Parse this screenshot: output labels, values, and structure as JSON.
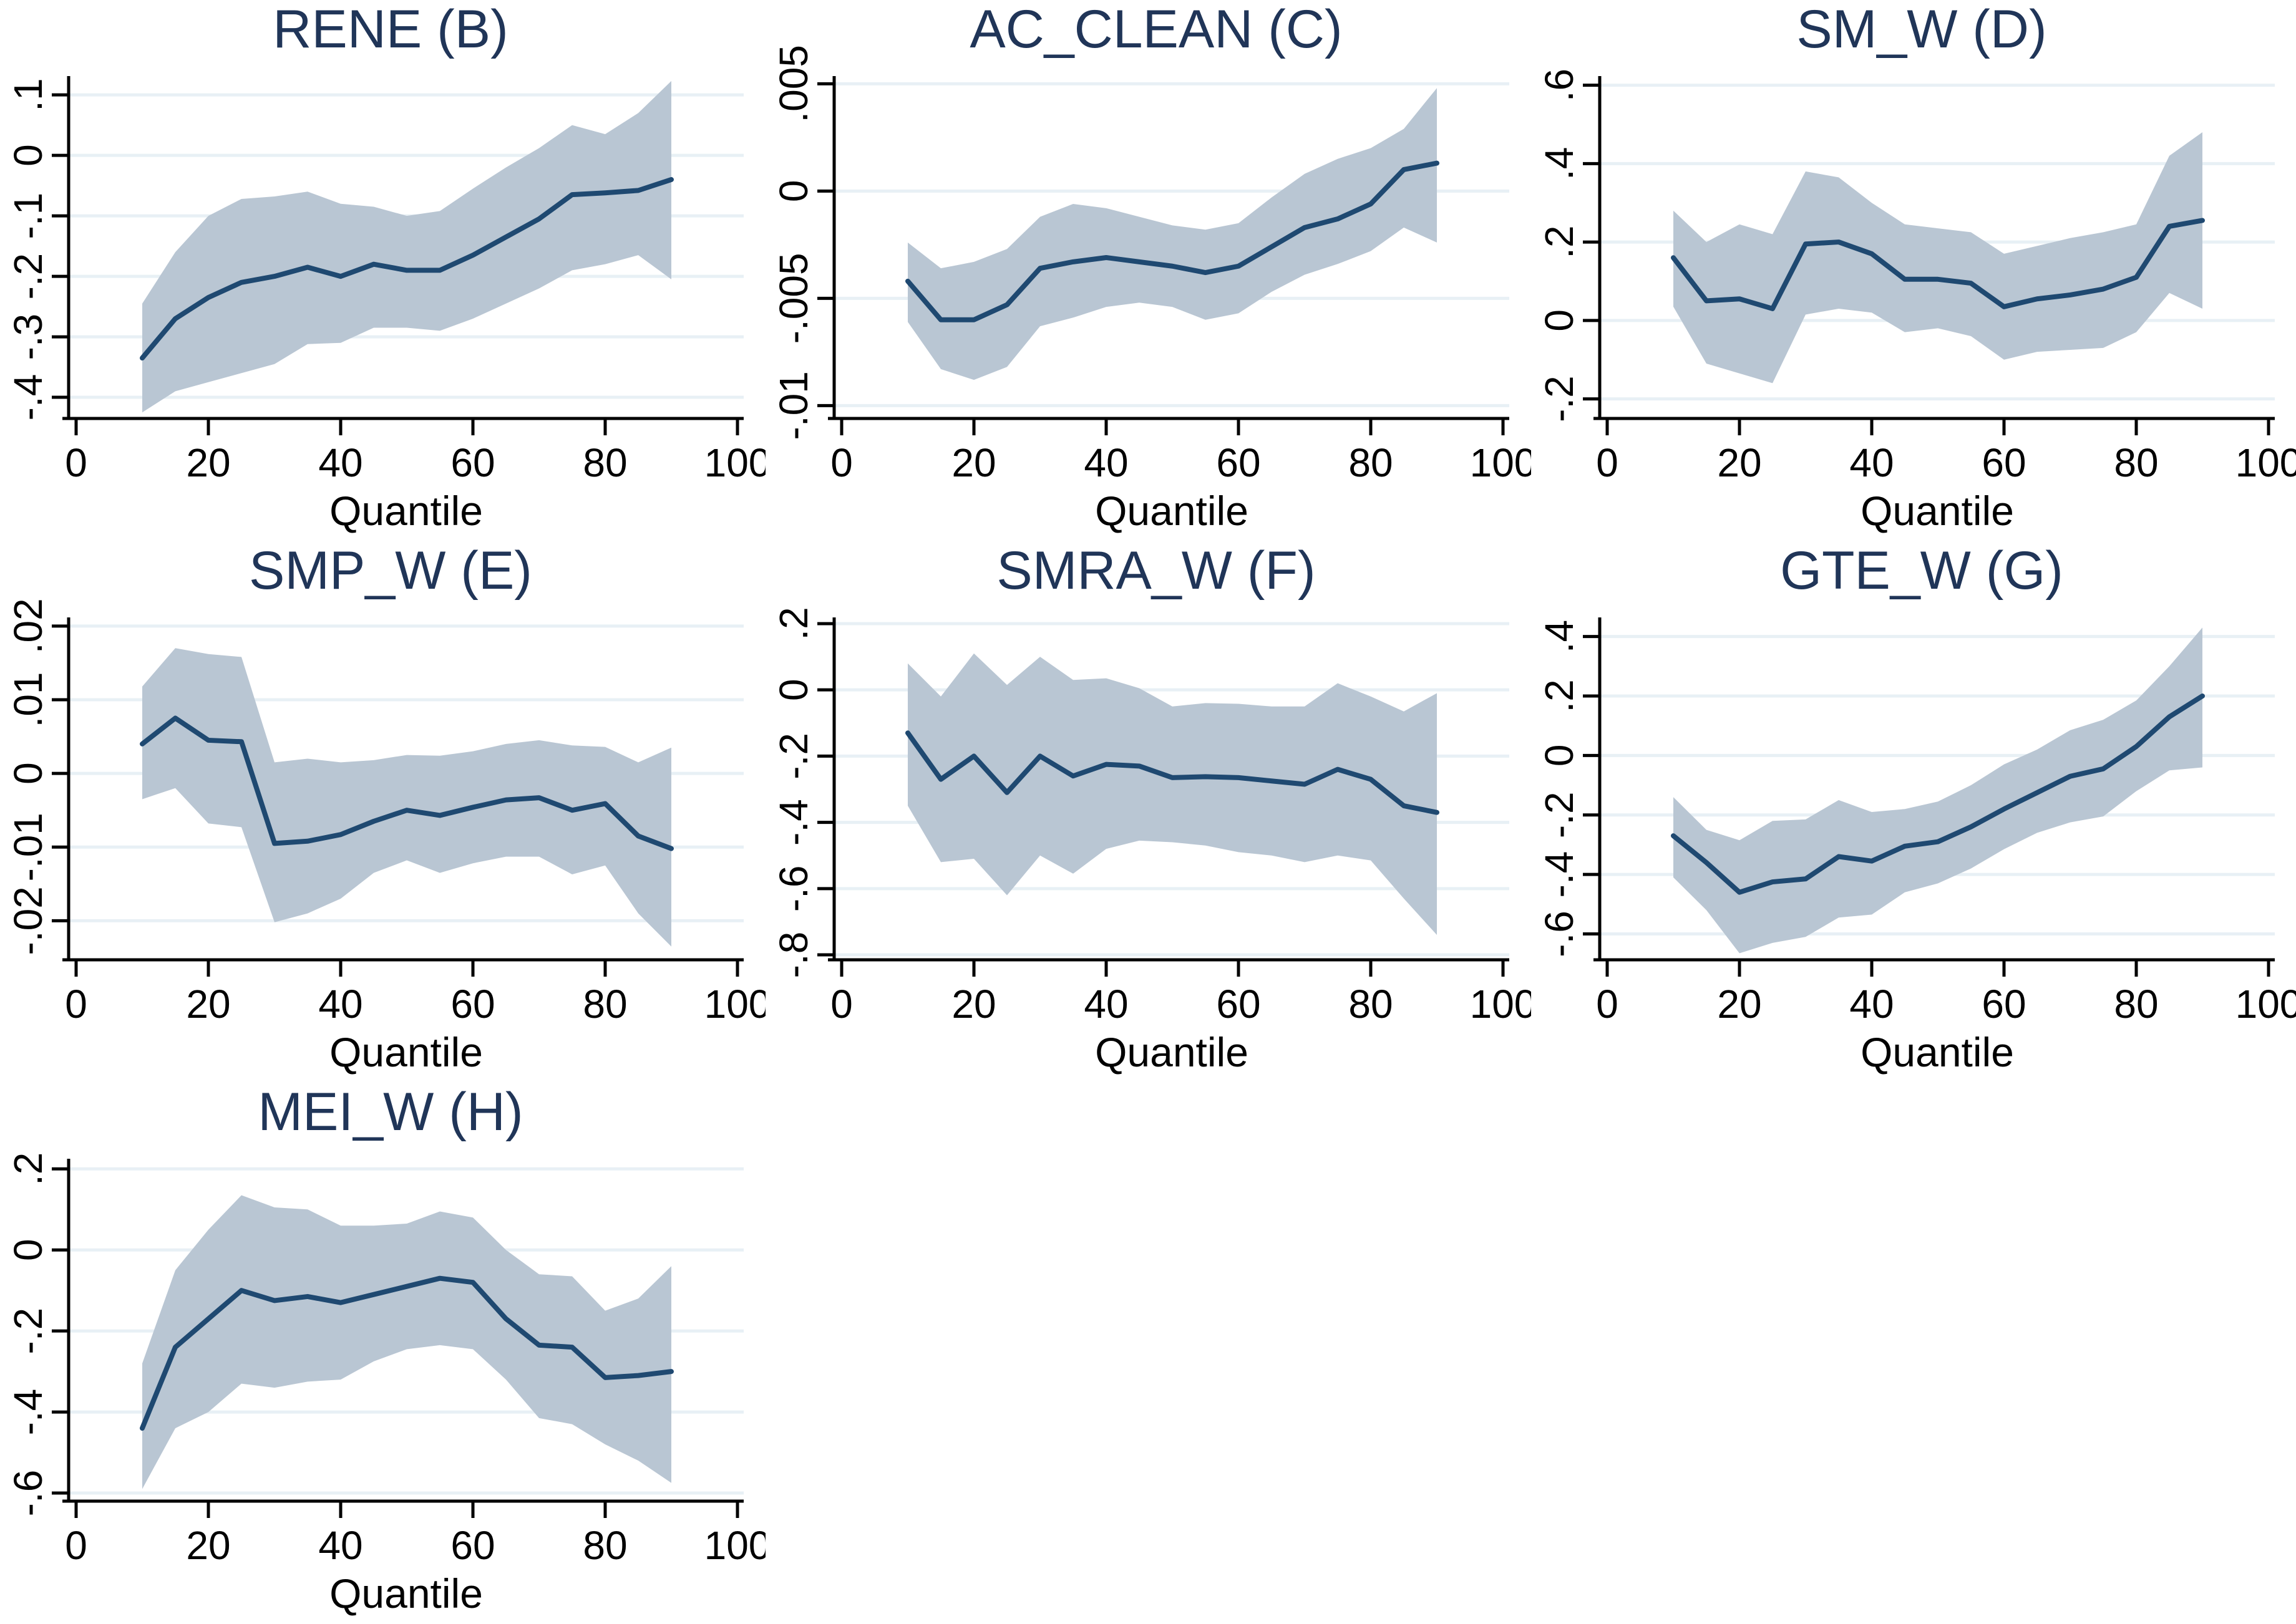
{
  "figure": {
    "background": "#ffffff",
    "colors": {
      "line": "#1f4971",
      "band": "#b9c6d3",
      "grid": "#e8f0f5",
      "axis": "#000000",
      "title": "#203558",
      "tick_label": "#000000"
    },
    "panel_count": 7,
    "x_axis_label": "Quantile"
  },
  "chart_data": [
    {
      "id": "rene-b",
      "type": "line",
      "subtype": "line-with-confidence-band",
      "title": "RENE (B)",
      "xlabel": "Quantile",
      "legend": "none",
      "grid": "horizontal",
      "xlim": [
        0,
        100
      ],
      "xticks": [
        0,
        20,
        40,
        60,
        80,
        100
      ],
      "xtick_labels": [
        "0",
        "20",
        "40",
        "60",
        "80",
        "100"
      ],
      "ylim": [
        -0.435,
        0.129
      ],
      "yticks": [
        0.1,
        0,
        -0.1,
        -0.2,
        -0.3,
        -0.4
      ],
      "ytick_labels": [
        ".1",
        "0",
        "-.1",
        "-.2",
        "-.3",
        "-.4"
      ],
      "x": [
        10,
        15,
        20,
        25,
        30,
        35,
        40,
        45,
        50,
        55,
        60,
        65,
        70,
        75,
        80,
        85,
        90
      ],
      "series": [
        {
          "name": "coefficient",
          "values": [
            -0.335,
            -0.27,
            -0.235,
            -0.21,
            -0.2,
            -0.185,
            -0.2,
            -0.18,
            -0.19,
            -0.19,
            -0.165,
            -0.135,
            -0.105,
            -0.065,
            -0.062,
            -0.058,
            -0.04
          ]
        },
        {
          "name": "ci_upper",
          "values": [
            -0.245,
            -0.16,
            -0.1,
            -0.072,
            -0.068,
            -0.06,
            -0.08,
            -0.085,
            -0.1,
            -0.092,
            -0.055,
            -0.02,
            0.012,
            0.05,
            0.035,
            0.07,
            0.123
          ]
        },
        {
          "name": "ci_lower",
          "values": [
            -0.425,
            -0.39,
            -0.375,
            -0.36,
            -0.345,
            -0.312,
            -0.31,
            -0.285,
            -0.285,
            -0.29,
            -0.27,
            -0.245,
            -0.22,
            -0.19,
            -0.18,
            -0.165,
            -0.205
          ]
        }
      ]
    },
    {
      "id": "ac-clean-c",
      "type": "line",
      "subtype": "line-with-confidence-band",
      "title": "AC_CLEAN (C)",
      "xlabel": "Quantile",
      "legend": "none",
      "grid": "horizontal",
      "xlim": [
        0,
        100
      ],
      "xticks": [
        0,
        20,
        40,
        60,
        80,
        100
      ],
      "xtick_labels": [
        "0",
        "20",
        "40",
        "60",
        "80",
        "100"
      ],
      "ylim": [
        -0.0106,
        0.0053
      ],
      "yticks": [
        0.005,
        0,
        -0.005,
        -0.01
      ],
      "ytick_labels": [
        ".005",
        "0",
        "-.005",
        "-.01"
      ],
      "x": [
        10,
        15,
        20,
        25,
        30,
        35,
        40,
        45,
        50,
        55,
        60,
        65,
        70,
        75,
        80,
        85,
        90
      ],
      "series": [
        {
          "name": "coefficient",
          "values": [
            -0.0042,
            -0.006,
            -0.006,
            -0.0053,
            -0.0036,
            -0.0033,
            -0.0031,
            -0.0033,
            -0.0035,
            -0.0038,
            -0.0035,
            -0.0026,
            -0.0017,
            -0.0013,
            -0.0006,
            0.001,
            0.0013
          ]
        },
        {
          "name": "ci_upper",
          "values": [
            -0.0024,
            -0.0036,
            -0.0033,
            -0.0027,
            -0.0012,
            -0.0006,
            -0.0008,
            -0.0012,
            -0.0016,
            -0.0018,
            -0.0015,
            -0.0003,
            0.0008,
            0.0015,
            0.002,
            0.0029,
            0.0048
          ]
        },
        {
          "name": "ci_lower",
          "values": [
            -0.0061,
            -0.0083,
            -0.0088,
            -0.0082,
            -0.0063,
            -0.0059,
            -0.0054,
            -0.0052,
            -0.0054,
            -0.006,
            -0.0057,
            -0.0047,
            -0.0039,
            -0.0034,
            -0.0028,
            -0.0017,
            -0.0024
          ]
        }
      ]
    },
    {
      "id": "sm-w-d",
      "type": "line",
      "subtype": "line-with-confidence-band",
      "title": "SM_W (D)",
      "xlabel": "Quantile",
      "legend": "none",
      "grid": "horizontal",
      "xlim": [
        0,
        100
      ],
      "xticks": [
        0,
        20,
        40,
        60,
        80,
        100
      ],
      "xtick_labels": [
        "0",
        "20",
        "40",
        "60",
        "80",
        "100"
      ],
      "ylim": [
        -0.25,
        0.62
      ],
      "yticks": [
        0.6,
        0.4,
        0.2,
        0,
        -0.2
      ],
      "ytick_labels": [
        ".6",
        ".4",
        ".2",
        "0",
        "-.2"
      ],
      "x": [
        10,
        15,
        20,
        25,
        30,
        35,
        40,
        45,
        50,
        55,
        60,
        65,
        70,
        75,
        80,
        85,
        90
      ],
      "series": [
        {
          "name": "coefficient",
          "values": [
            0.16,
            0.05,
            0.055,
            0.03,
            0.195,
            0.2,
            0.17,
            0.105,
            0.105,
            0.095,
            0.035,
            0.055,
            0.065,
            0.08,
            0.11,
            0.24,
            0.255
          ]
        },
        {
          "name": "ci_upper",
          "values": [
            0.28,
            0.2,
            0.245,
            0.22,
            0.38,
            0.365,
            0.3,
            0.245,
            0.235,
            0.225,
            0.17,
            0.19,
            0.21,
            0.225,
            0.245,
            0.42,
            0.48
          ]
        },
        {
          "name": "ci_lower",
          "values": [
            0.035,
            -0.11,
            -0.135,
            -0.16,
            0.015,
            0.03,
            0.02,
            -0.03,
            -0.02,
            -0.04,
            -0.1,
            -0.08,
            -0.075,
            -0.07,
            -0.03,
            0.07,
            0.03
          ]
        }
      ]
    },
    {
      "id": "smp-w-e",
      "type": "line",
      "subtype": "line-with-confidence-band",
      "title": "SMP_W (E)",
      "xlabel": "Quantile",
      "legend": "none",
      "grid": "horizontal",
      "xlim": [
        0,
        100
      ],
      "xticks": [
        0,
        20,
        40,
        60,
        80,
        100
      ],
      "xtick_labels": [
        "0",
        "20",
        "40",
        "60",
        "80",
        "100"
      ],
      "ylim": [
        -0.0253,
        0.021
      ],
      "yticks": [
        0.02,
        0.01,
        0,
        -0.01,
        -0.02
      ],
      "ytick_labels": [
        ".02",
        ".01",
        "0",
        "-.01",
        "-.02"
      ],
      "x": [
        10,
        15,
        20,
        25,
        30,
        35,
        40,
        45,
        50,
        55,
        60,
        65,
        70,
        75,
        80,
        85,
        90
      ],
      "series": [
        {
          "name": "coefficient",
          "values": [
            0.004,
            0.0075,
            0.0045,
            0.0043,
            -0.0095,
            -0.0092,
            -0.0083,
            -0.0065,
            -0.005,
            -0.0057,
            -0.0046,
            -0.0036,
            -0.0033,
            -0.005,
            -0.0041,
            -0.0085,
            -0.0102
          ]
        },
        {
          "name": "ci_upper",
          "values": [
            0.0118,
            0.017,
            0.0162,
            0.0158,
            0.0015,
            0.002,
            0.0015,
            0.0018,
            0.0025,
            0.0024,
            0.003,
            0.004,
            0.0045,
            0.0038,
            0.0036,
            0.0015,
            0.0035
          ]
        },
        {
          "name": "ci_lower",
          "values": [
            -0.0035,
            -0.002,
            -0.0068,
            -0.0073,
            -0.0202,
            -0.019,
            -0.017,
            -0.0135,
            -0.0118,
            -0.0135,
            -0.0122,
            -0.0113,
            -0.0113,
            -0.0137,
            -0.0125,
            -0.019,
            -0.0235
          ]
        }
      ]
    },
    {
      "id": "smra-w-f",
      "type": "line",
      "subtype": "line-with-confidence-band",
      "title": "SMRA_W (F)",
      "xlabel": "Quantile",
      "legend": "none",
      "grid": "horizontal",
      "xlim": [
        0,
        100
      ],
      "xticks": [
        0,
        20,
        40,
        60,
        80,
        100
      ],
      "xtick_labels": [
        "0",
        "20",
        "40",
        "60",
        "80",
        "100"
      ],
      "ylim": [
        -0.815,
        0.215
      ],
      "yticks": [
        0.2,
        0,
        -0.2,
        -0.4,
        -0.6,
        -0.8
      ],
      "ytick_labels": [
        ".2",
        "0",
        "-.2",
        "-.4",
        "-.6",
        "-.8"
      ],
      "x": [
        10,
        15,
        20,
        25,
        30,
        35,
        40,
        45,
        50,
        55,
        60,
        65,
        70,
        75,
        80,
        85,
        90
      ],
      "series": [
        {
          "name": "coefficient",
          "values": [
            -0.13,
            -0.27,
            -0.2,
            -0.31,
            -0.2,
            -0.26,
            -0.225,
            -0.23,
            -0.265,
            -0.262,
            -0.265,
            -0.275,
            -0.285,
            -0.24,
            -0.27,
            -0.35,
            -0.37
          ]
        },
        {
          "name": "ci_upper",
          "values": [
            0.08,
            -0.02,
            0.11,
            0.015,
            0.1,
            0.03,
            0.035,
            0.005,
            -0.05,
            -0.04,
            -0.042,
            -0.05,
            -0.05,
            0.02,
            -0.02,
            -0.065,
            -0.01
          ]
        },
        {
          "name": "ci_lower",
          "values": [
            -0.35,
            -0.52,
            -0.51,
            -0.62,
            -0.5,
            -0.555,
            -0.48,
            -0.455,
            -0.46,
            -0.47,
            -0.49,
            -0.5,
            -0.52,
            -0.5,
            -0.515,
            -0.63,
            -0.74
          ]
        }
      ]
    },
    {
      "id": "gte-w-g",
      "type": "line",
      "subtype": "line-with-confidence-band",
      "title": "GTE_W (G)",
      "xlabel": "Quantile",
      "legend": "none",
      "grid": "horizontal",
      "xlim": [
        0,
        100
      ],
      "xticks": [
        0,
        20,
        40,
        60,
        80,
        100
      ],
      "xtick_labels": [
        "0",
        "20",
        "40",
        "60",
        "80",
        "100"
      ],
      "ylim": [
        -0.687,
        0.46
      ],
      "yticks": [
        0.4,
        0.2,
        0,
        -0.2,
        -0.4,
        -0.6
      ],
      "ytick_labels": [
        ".4",
        ".2",
        "0",
        "-.2",
        "-.4",
        "-.6"
      ],
      "x": [
        10,
        15,
        20,
        25,
        30,
        35,
        40,
        45,
        50,
        55,
        60,
        65,
        70,
        75,
        80,
        85,
        90
      ],
      "series": [
        {
          "name": "coefficient",
          "values": [
            -0.27,
            -0.36,
            -0.46,
            -0.425,
            -0.415,
            -0.34,
            -0.355,
            -0.305,
            -0.29,
            -0.24,
            -0.18,
            -0.125,
            -0.07,
            -0.045,
            0.03,
            0.13,
            0.2
          ]
        },
        {
          "name": "ci_upper",
          "values": [
            -0.14,
            -0.25,
            -0.285,
            -0.22,
            -0.215,
            -0.15,
            -0.19,
            -0.18,
            -0.155,
            -0.1,
            -0.03,
            0.02,
            0.085,
            0.12,
            0.185,
            0.3,
            0.43
          ]
        },
        {
          "name": "ci_lower",
          "values": [
            -0.41,
            -0.52,
            -0.665,
            -0.63,
            -0.61,
            -0.545,
            -0.535,
            -0.46,
            -0.43,
            -0.38,
            -0.315,
            -0.26,
            -0.225,
            -0.205,
            -0.12,
            -0.05,
            -0.04
          ]
        }
      ]
    },
    {
      "id": "mei-w-h",
      "type": "line",
      "subtype": "line-with-confidence-band",
      "title": "MEI_W (H)",
      "xlabel": "Quantile",
      "legend": "none",
      "grid": "horizontal",
      "xlim": [
        0,
        100
      ],
      "xticks": [
        0,
        20,
        40,
        60,
        80,
        100
      ],
      "xtick_labels": [
        "0",
        "20",
        "40",
        "60",
        "80",
        "100"
      ],
      "ylim": [
        -0.62,
        0.222
      ],
      "yticks": [
        0.2,
        0,
        -0.2,
        -0.4,
        -0.6
      ],
      "ytick_labels": [
        ".2",
        "0",
        "-.2",
        "-.4",
        "-.6"
      ],
      "x": [
        10,
        15,
        20,
        25,
        30,
        35,
        40,
        45,
        50,
        55,
        60,
        65,
        70,
        75,
        80,
        85,
        90
      ],
      "series": [
        {
          "name": "coefficient",
          "values": [
            -0.44,
            -0.24,
            -0.17,
            -0.1,
            -0.125,
            -0.115,
            -0.13,
            -0.11,
            -0.09,
            -0.07,
            -0.08,
            -0.17,
            -0.235,
            -0.24,
            -0.315,
            -0.31,
            -0.3
          ]
        },
        {
          "name": "ci_upper",
          "values": [
            -0.28,
            -0.05,
            0.05,
            0.135,
            0.105,
            0.1,
            0.06,
            0.06,
            0.065,
            0.095,
            0.08,
            0.0,
            -0.06,
            -0.065,
            -0.15,
            -0.12,
            -0.04
          ]
        },
        {
          "name": "ci_lower",
          "values": [
            -0.59,
            -0.44,
            -0.4,
            -0.33,
            -0.34,
            -0.325,
            -0.32,
            -0.275,
            -0.245,
            -0.235,
            -0.245,
            -0.32,
            -0.415,
            -0.43,
            -0.48,
            -0.52,
            -0.575
          ]
        }
      ]
    }
  ]
}
